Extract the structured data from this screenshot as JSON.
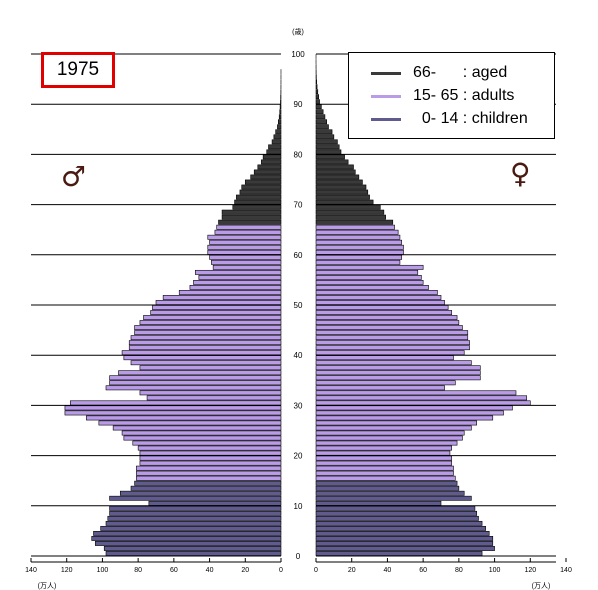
{
  "year_label": "1975",
  "legend": [
    {
      "label": "66-      : aged",
      "color": "#3a3a3a"
    },
    {
      "label": "15- 65 : adults",
      "color": "#b99be8"
    },
    {
      "label": "  0- 14 : children",
      "color": "#5f5b8e"
    }
  ],
  "male_symbol": "♂",
  "female_symbol": "♀",
  "chart_data": {
    "type": "bar",
    "orientation": "horizontal-population-pyramid",
    "age_axis": {
      "label": "(歳)",
      "ticks": [
        "0",
        "10",
        "20",
        "30",
        "40",
        "50",
        "60",
        "70",
        "80",
        "90",
        "100"
      ],
      "range": [
        0,
        100
      ]
    },
    "value_axis": {
      "unit": "(万人)",
      "ticks": [
        "140",
        "120",
        "100",
        "80",
        "60",
        "40",
        "20",
        "0"
      ],
      "range": [
        0,
        140
      ]
    },
    "grid": "horizontal lines every 10 years",
    "group_colors": {
      "aged": "#3a3a3a",
      "adults": "#b99be8",
      "children": "#5f5b8e"
    },
    "series": [
      {
        "name": "male",
        "values": [
          98,
          99,
          104,
          106,
          105,
          101,
          98,
          97,
          96,
          96,
          74,
          96,
          90,
          84,
          82,
          81,
          81,
          81,
          79,
          79,
          79,
          80,
          83,
          88,
          89,
          94,
          102,
          109,
          121,
          121,
          118,
          75,
          79,
          98,
          96,
          96,
          91,
          79,
          84,
          88,
          89,
          85,
          85,
          84,
          82,
          82,
          79,
          77,
          73,
          72,
          70,
          66,
          57,
          51,
          49,
          46,
          48,
          38,
          39,
          40,
          41,
          41,
          40,
          41,
          37,
          36,
          35,
          33,
          33,
          27,
          26,
          25,
          23,
          22,
          20,
          17,
          15,
          13,
          11,
          10,
          8,
          7,
          5,
          4,
          3,
          2,
          1.5,
          1,
          0.7,
          0.5,
          0.3,
          0.2,
          0.1,
          0.05,
          0.03,
          0.02,
          0.01,
          0,
          0,
          0,
          0
        ]
      },
      {
        "name": "female",
        "values": [
          93,
          100,
          99,
          99,
          97,
          95,
          93,
          91,
          90,
          89,
          70,
          87,
          83,
          80,
          79,
          78,
          77,
          77,
          76,
          76,
          75,
          76,
          79,
          82,
          83,
          87,
          90,
          99,
          105,
          110,
          120,
          118,
          112,
          72,
          78,
          92,
          92,
          92,
          87,
          77,
          83,
          86,
          86,
          85,
          85,
          82,
          80,
          79,
          76,
          74,
          72,
          70,
          68,
          63,
          60,
          59,
          57,
          60,
          47,
          48,
          49,
          49,
          48,
          47,
          46,
          44,
          43,
          39,
          38,
          36,
          32,
          30,
          29,
          28,
          26,
          24,
          22,
          21,
          18,
          16,
          14,
          13,
          12,
          10,
          9,
          7,
          6,
          5,
          4,
          3,
          2,
          1.5,
          1,
          0.6,
          0.4,
          0.2,
          0.1,
          0.05,
          0.02,
          0.01,
          0
        ]
      }
    ]
  }
}
